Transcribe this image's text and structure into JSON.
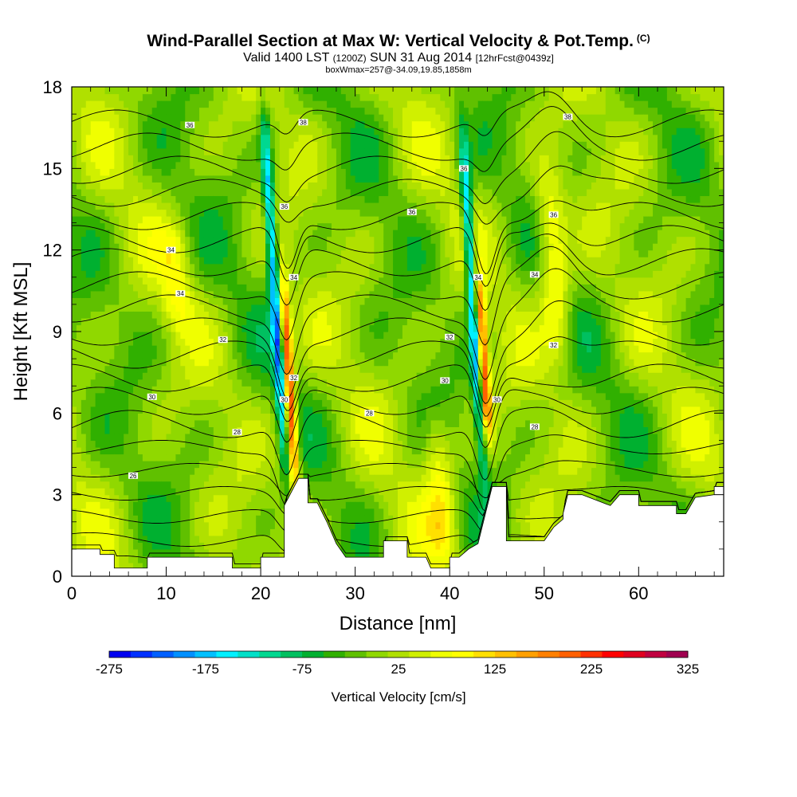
{
  "chart_data": {
    "type": "heatmap",
    "title": "Wind-Parallel Section at Max W: Vertical Velocity & Pot.Temp.",
    "title_suffix": "(C)",
    "subtitle_parts": [
      "Valid 1400 LST",
      "(1200Z)",
      "SUN 31 Aug 2014",
      "[12hrFcst@0439z]"
    ],
    "subtitle2": "boxWmax=257@-34.09,19.85,1858m",
    "xlabel": "Distance [nm]",
    "ylabel": "Height [Kft MSL]",
    "xlim": [
      0,
      69
    ],
    "ylim": [
      0,
      18
    ],
    "xticks": [
      0,
      10,
      20,
      30,
      40,
      50,
      60
    ],
    "yticks": [
      0,
      3,
      6,
      9,
      12,
      15,
      18
    ],
    "colorbar": {
      "title": "Vertical Velocity [cm/s]",
      "tick_labels": [
        -275,
        -175,
        -75,
        25,
        125,
        225,
        325
      ],
      "min": -275,
      "max": 325,
      "colors": [
        "#0000f0",
        "#0030ff",
        "#0060ff",
        "#0090ff",
        "#00c0ff",
        "#00f0ff",
        "#00e0c8",
        "#00d890",
        "#00c060",
        "#00b030",
        "#30b000",
        "#60c000",
        "#90d800",
        "#b0e000",
        "#d0f000",
        "#f0ff00",
        "#ffff00",
        "#ffe000",
        "#ffc000",
        "#ffa000",
        "#ff8000",
        "#ff6000",
        "#ff3000",
        "#ff0000",
        "#e00020",
        "#c00040",
        "#a00050"
      ]
    },
    "vertical_velocity_features": [
      {
        "x": 21.5,
        "z": [
          4,
          17
        ],
        "value": -200
      },
      {
        "x": 23.0,
        "z": [
          3,
          11
        ],
        "value": 260
      },
      {
        "x": 42.5,
        "z": [
          4,
          16
        ],
        "value": -220
      },
      {
        "x": 43.5,
        "z": [
          5,
          11
        ],
        "value": 257
      },
      {
        "x": 39.0,
        "z": [
          0.5,
          6
        ],
        "value": 90
      },
      {
        "x": 51.0,
        "z": [
          8,
          15
        ],
        "value": 110
      },
      {
        "x": 11.0,
        "z": [
          9,
          13
        ],
        "value": 60
      }
    ],
    "theta_contours": {
      "levels": [
        20,
        22,
        24,
        26,
        28,
        30,
        32,
        34,
        36,
        38
      ],
      "labels": [
        {
          "text": "26",
          "x": 6.5,
          "z": 3.7
        },
        {
          "text": "28",
          "x": 17.5,
          "z": 5.3
        },
        {
          "text": "30",
          "x": 8.5,
          "z": 6.6
        },
        {
          "text": "32",
          "x": 16,
          "z": 8.7
        },
        {
          "text": "34",
          "x": 11.5,
          "z": 10.4
        },
        {
          "text": "34",
          "x": 10.5,
          "z": 12.0
        },
        {
          "text": "36",
          "x": 12.5,
          "z": 16.6
        },
        {
          "text": "36",
          "x": 22.5,
          "z": 13.6
        },
        {
          "text": "38",
          "x": 24.5,
          "z": 16.7
        },
        {
          "text": "34",
          "x": 23.5,
          "z": 11.0
        },
        {
          "text": "32",
          "x": 23.5,
          "z": 7.3
        },
        {
          "text": "30",
          "x": 22.5,
          "z": 6.5
        },
        {
          "text": "28",
          "x": 31.5,
          "z": 6.0
        },
        {
          "text": "36",
          "x": 36.0,
          "z": 13.4
        },
        {
          "text": "32",
          "x": 40.0,
          "z": 8.8
        },
        {
          "text": "30",
          "x": 39.5,
          "z": 7.2
        },
        {
          "text": "36",
          "x": 41.5,
          "z": 15.0
        },
        {
          "text": "34",
          "x": 43.0,
          "z": 11.0
        },
        {
          "text": "30",
          "x": 45.0,
          "z": 6.5
        },
        {
          "text": "28",
          "x": 49.0,
          "z": 5.5
        },
        {
          "text": "38",
          "x": 52.5,
          "z": 16.9
        },
        {
          "text": "36",
          "x": 51.0,
          "z": 13.3
        },
        {
          "text": "34",
          "x": 49.0,
          "z": 11.1
        },
        {
          "text": "32",
          "x": 51.0,
          "z": 8.5
        }
      ]
    },
    "terrain": [
      [
        0,
        1.0
      ],
      [
        3,
        1.0
      ],
      [
        3,
        0.8
      ],
      [
        4.5,
        0.8
      ],
      [
        4.5,
        0.3
      ],
      [
        8,
        0.3
      ],
      [
        8,
        0.7
      ],
      [
        17,
        0.7
      ],
      [
        17,
        0.3
      ],
      [
        20,
        0.3
      ],
      [
        20,
        0.7
      ],
      [
        22.5,
        0.7
      ],
      [
        22.5,
        2.6
      ],
      [
        24,
        3.6
      ],
      [
        25,
        3.6
      ],
      [
        25,
        2.7
      ],
      [
        26,
        2.7
      ],
      [
        27,
        2.0
      ],
      [
        28,
        1.2
      ],
      [
        29,
        0.7
      ],
      [
        30,
        0.7
      ],
      [
        33,
        0.7
      ],
      [
        33,
        1.3
      ],
      [
        35.5,
        1.3
      ],
      [
        35.5,
        0.7
      ],
      [
        37.5,
        0.7
      ],
      [
        38,
        0.3
      ],
      [
        40,
        0.3
      ],
      [
        40,
        0.7
      ],
      [
        41,
        0.7
      ],
      [
        42,
        1.0
      ],
      [
        43,
        1.2
      ],
      [
        44,
        2.6
      ],
      [
        44.5,
        3.3
      ],
      [
        46,
        3.3
      ],
      [
        46,
        1.3
      ],
      [
        50,
        1.3
      ],
      [
        51,
        1.8
      ],
      [
        52,
        2.1
      ],
      [
        52,
        2.3
      ],
      [
        52.5,
        3.0
      ],
      [
        54,
        3.0
      ],
      [
        57,
        2.6
      ],
      [
        58,
        3.0
      ],
      [
        60,
        3.0
      ],
      [
        60,
        2.6
      ],
      [
        64,
        2.6
      ],
      [
        64,
        2.3
      ],
      [
        65,
        2.3
      ],
      [
        66,
        2.9
      ],
      [
        68,
        3.0
      ],
      [
        68,
        3.3
      ],
      [
        69,
        3.3
      ],
      [
        69,
        0
      ]
    ]
  }
}
